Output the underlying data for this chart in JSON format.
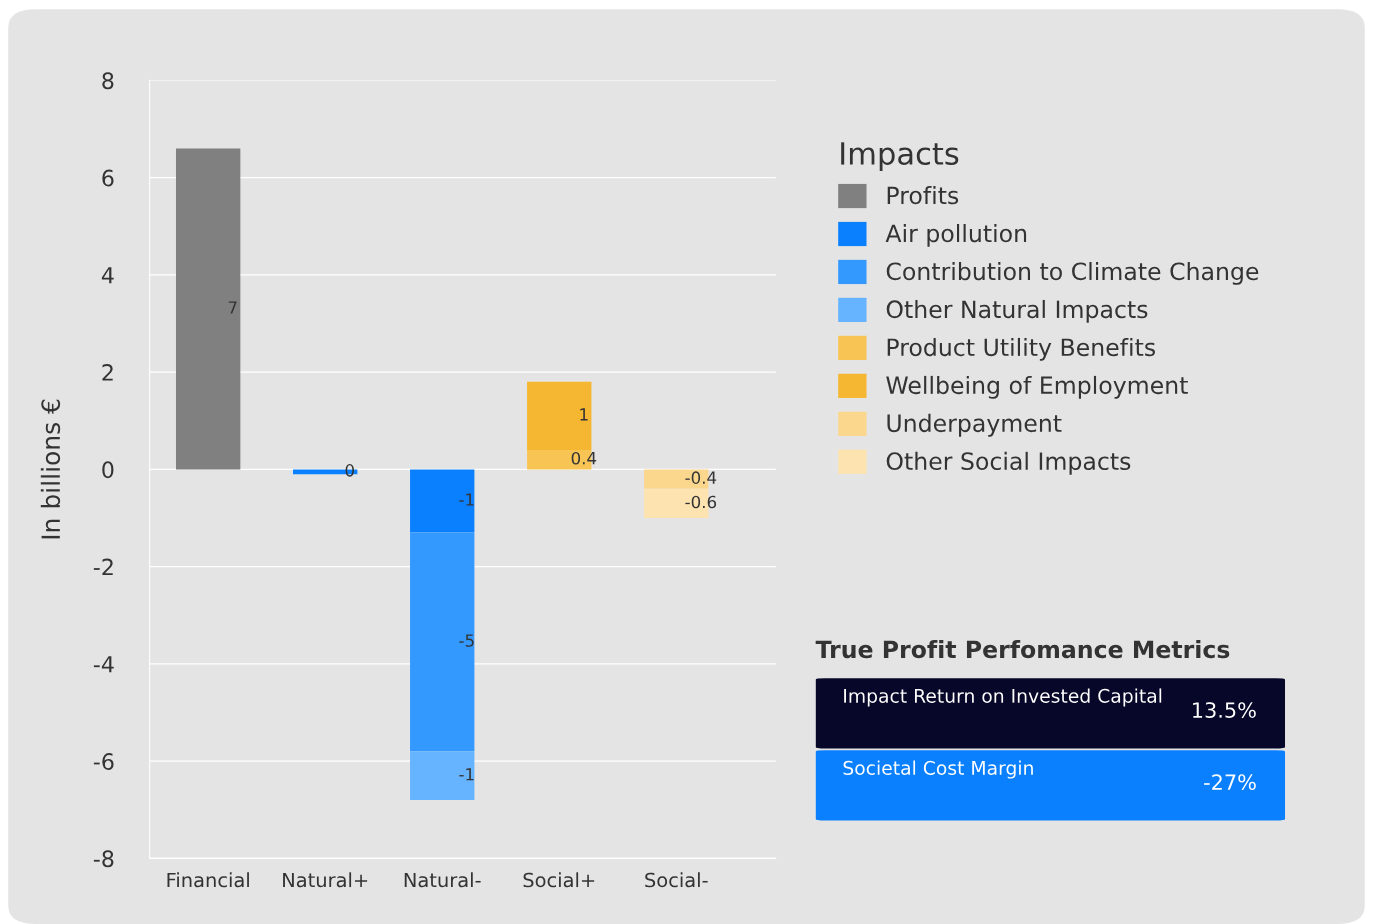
{
  "chart_data": [
    {
      "type": "bar",
      "stacked": true,
      "ylabel": "In billions €",
      "legend_title": "Impacts",
      "legend": "right",
      "grid": "y",
      "categories": [
        "Financial",
        "Natural+",
        "Natural-",
        "Social+",
        "Social-"
      ],
      "ylim": [
        -8,
        8
      ],
      "yticks": [
        -8,
        -6,
        -4,
        -2,
        0,
        2,
        4,
        6,
        8
      ],
      "series": [
        {
          "name": "Profits",
          "color": "#808080",
          "values": [
            6.6,
            null,
            null,
            null,
            null
          ],
          "value_labels": [
            "7",
            null,
            null,
            null,
            null
          ]
        },
        {
          "name": "Air pollution",
          "color": "#0a80ff",
          "values": [
            null,
            -0.1,
            -1.3,
            null,
            null
          ],
          "value_labels": [
            null,
            "0",
            "-1",
            null,
            null
          ]
        },
        {
          "name": "Contribution to Climate Change",
          "color": "#3399ff",
          "values": [
            null,
            null,
            -4.5,
            null,
            null
          ],
          "value_labels": [
            null,
            null,
            "-5",
            null,
            null
          ]
        },
        {
          "name": "Other Natural Impacts",
          "color": "#66b3ff",
          "values": [
            null,
            null,
            -1.0,
            null,
            null
          ],
          "value_labels": [
            null,
            null,
            "-1",
            null,
            null
          ]
        },
        {
          "name": "Product Utility Benefits",
          "color": "#f8c555",
          "values": [
            null,
            null,
            null,
            0.4,
            null
          ],
          "value_labels": [
            null,
            null,
            null,
            "0.4",
            null
          ]
        },
        {
          "name": "Wellbeing of Employment",
          "color": "#f5b731",
          "values": [
            null,
            null,
            null,
            1.4,
            null
          ],
          "value_labels": [
            null,
            null,
            null,
            "1",
            null
          ]
        },
        {
          "name": "Underpayment",
          "color": "#fbd78e",
          "values": [
            null,
            null,
            null,
            null,
            -0.4
          ],
          "value_labels": [
            null,
            null,
            null,
            null,
            "-0.4"
          ]
        },
        {
          "name": "Other Social Impacts",
          "color": "#fce3b0",
          "values": [
            null,
            null,
            null,
            null,
            -0.6
          ],
          "value_labels": [
            null,
            null,
            null,
            null,
            "-0.6"
          ]
        }
      ]
    },
    {
      "type": "other",
      "title": "True Profit Perfomance Metrics",
      "colors": [
        "#07072a",
        "#0a80ff"
      ],
      "annotations": [
        "Impact Return on Invested Capital",
        "13.5%",
        "Societal Cost Margin",
        "-27%"
      ]
    }
  ]
}
